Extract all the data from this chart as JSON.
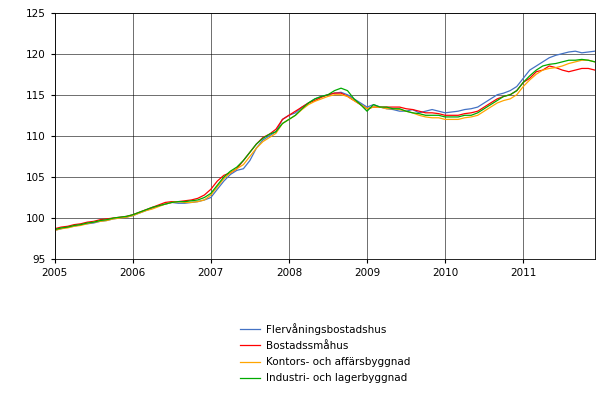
{
  "xlim": [
    2005.0,
    2011.917
  ],
  "ylim": [
    95,
    125
  ],
  "yticks": [
    95,
    100,
    105,
    110,
    115,
    120,
    125
  ],
  "xticks": [
    2005,
    2006,
    2007,
    2008,
    2009,
    2010,
    2011
  ],
  "legend_labels": [
    "Flervåningsbostadshus",
    "Bostadssmåhus",
    "Kontors- och affärsbyggnad",
    "Industri- och lagerbyggnad"
  ],
  "line_colors": [
    "#4472c4",
    "#ff0000",
    "#ffa500",
    "#00aa00"
  ],
  "background_color": "#ffffff",
  "grid_color": "#000000",
  "series": {
    "flervaning": [
      [
        2005.0,
        98.5
      ],
      [
        2005.083,
        98.7
      ],
      [
        2005.167,
        98.9
      ],
      [
        2005.25,
        99.0
      ],
      [
        2005.333,
        99.2
      ],
      [
        2005.417,
        99.3
      ],
      [
        2005.5,
        99.4
      ],
      [
        2005.583,
        99.6
      ],
      [
        2005.667,
        99.7
      ],
      [
        2005.75,
        99.9
      ],
      [
        2005.833,
        100.0
      ],
      [
        2005.917,
        100.1
      ],
      [
        2006.0,
        100.3
      ],
      [
        2006.083,
        100.6
      ],
      [
        2006.167,
        100.9
      ],
      [
        2006.25,
        101.2
      ],
      [
        2006.333,
        101.5
      ],
      [
        2006.417,
        101.7
      ],
      [
        2006.5,
        101.9
      ],
      [
        2006.583,
        101.8
      ],
      [
        2006.667,
        101.8
      ],
      [
        2006.75,
        101.9
      ],
      [
        2006.833,
        102.0
      ],
      [
        2006.917,
        102.2
      ],
      [
        2007.0,
        102.5
      ],
      [
        2007.083,
        103.5
      ],
      [
        2007.167,
        104.5
      ],
      [
        2007.25,
        105.3
      ],
      [
        2007.333,
        105.8
      ],
      [
        2007.417,
        106.0
      ],
      [
        2007.5,
        107.0
      ],
      [
        2007.583,
        108.5
      ],
      [
        2007.667,
        109.5
      ],
      [
        2007.75,
        110.0
      ],
      [
        2007.833,
        110.5
      ],
      [
        2007.917,
        112.0
      ],
      [
        2008.0,
        112.5
      ],
      [
        2008.083,
        112.8
      ],
      [
        2008.167,
        113.5
      ],
      [
        2008.25,
        114.0
      ],
      [
        2008.333,
        114.5
      ],
      [
        2008.417,
        114.8
      ],
      [
        2008.5,
        115.0
      ],
      [
        2008.583,
        115.2
      ],
      [
        2008.667,
        115.3
      ],
      [
        2008.75,
        115.0
      ],
      [
        2008.833,
        114.5
      ],
      [
        2008.917,
        114.0
      ],
      [
        2009.0,
        113.5
      ],
      [
        2009.083,
        113.8
      ],
      [
        2009.167,
        113.5
      ],
      [
        2009.25,
        113.3
      ],
      [
        2009.333,
        113.2
      ],
      [
        2009.417,
        113.0
      ],
      [
        2009.5,
        113.0
      ],
      [
        2009.583,
        113.2
      ],
      [
        2009.667,
        112.8
      ],
      [
        2009.75,
        113.0
      ],
      [
        2009.833,
        113.2
      ],
      [
        2009.917,
        113.0
      ],
      [
        2010.0,
        112.8
      ],
      [
        2010.083,
        112.9
      ],
      [
        2010.167,
        113.0
      ],
      [
        2010.25,
        113.2
      ],
      [
        2010.333,
        113.3
      ],
      [
        2010.417,
        113.5
      ],
      [
        2010.5,
        114.0
      ],
      [
        2010.583,
        114.5
      ],
      [
        2010.667,
        115.0
      ],
      [
        2010.75,
        115.2
      ],
      [
        2010.833,
        115.5
      ],
      [
        2010.917,
        116.0
      ],
      [
        2011.0,
        117.0
      ],
      [
        2011.083,
        118.0
      ],
      [
        2011.167,
        118.5
      ],
      [
        2011.25,
        119.0
      ],
      [
        2011.333,
        119.5
      ],
      [
        2011.417,
        119.8
      ],
      [
        2011.5,
        120.0
      ],
      [
        2011.583,
        120.2
      ],
      [
        2011.667,
        120.3
      ],
      [
        2011.75,
        120.1
      ],
      [
        2011.833,
        120.2
      ],
      [
        2011.917,
        120.3
      ]
    ],
    "bostadsmahus": [
      [
        2005.0,
        98.7
      ],
      [
        2005.083,
        98.9
      ],
      [
        2005.167,
        99.0
      ],
      [
        2005.25,
        99.2
      ],
      [
        2005.333,
        99.3
      ],
      [
        2005.417,
        99.5
      ],
      [
        2005.5,
        99.6
      ],
      [
        2005.583,
        99.8
      ],
      [
        2005.667,
        99.9
      ],
      [
        2005.75,
        100.0
      ],
      [
        2005.833,
        100.1
      ],
      [
        2005.917,
        100.2
      ],
      [
        2006.0,
        100.4
      ],
      [
        2006.083,
        100.7
      ],
      [
        2006.167,
        101.0
      ],
      [
        2006.25,
        101.3
      ],
      [
        2006.333,
        101.6
      ],
      [
        2006.417,
        101.9
      ],
      [
        2006.5,
        102.0
      ],
      [
        2006.583,
        102.0
      ],
      [
        2006.667,
        102.1
      ],
      [
        2006.75,
        102.2
      ],
      [
        2006.833,
        102.4
      ],
      [
        2006.917,
        102.8
      ],
      [
        2007.0,
        103.5
      ],
      [
        2007.083,
        104.5
      ],
      [
        2007.167,
        105.2
      ],
      [
        2007.25,
        105.5
      ],
      [
        2007.333,
        106.0
      ],
      [
        2007.417,
        107.0
      ],
      [
        2007.5,
        108.0
      ],
      [
        2007.583,
        109.0
      ],
      [
        2007.667,
        109.8
      ],
      [
        2007.75,
        110.2
      ],
      [
        2007.833,
        110.8
      ],
      [
        2007.917,
        112.0
      ],
      [
        2008.0,
        112.5
      ],
      [
        2008.083,
        113.0
      ],
      [
        2008.167,
        113.5
      ],
      [
        2008.25,
        114.0
      ],
      [
        2008.333,
        114.3
      ],
      [
        2008.417,
        114.7
      ],
      [
        2008.5,
        115.0
      ],
      [
        2008.583,
        115.2
      ],
      [
        2008.667,
        115.2
      ],
      [
        2008.75,
        114.8
      ],
      [
        2008.833,
        114.3
      ],
      [
        2008.917,
        113.8
      ],
      [
        2009.0,
        113.3
      ],
      [
        2009.083,
        113.5
      ],
      [
        2009.167,
        113.5
      ],
      [
        2009.25,
        113.5
      ],
      [
        2009.333,
        113.5
      ],
      [
        2009.417,
        113.5
      ],
      [
        2009.5,
        113.3
      ],
      [
        2009.583,
        113.2
      ],
      [
        2009.667,
        113.0
      ],
      [
        2009.75,
        112.8
      ],
      [
        2009.833,
        112.8
      ],
      [
        2009.917,
        112.7
      ],
      [
        2010.0,
        112.5
      ],
      [
        2010.083,
        112.5
      ],
      [
        2010.167,
        112.5
      ],
      [
        2010.25,
        112.7
      ],
      [
        2010.333,
        112.8
      ],
      [
        2010.417,
        113.0
      ],
      [
        2010.5,
        113.5
      ],
      [
        2010.583,
        114.0
      ],
      [
        2010.667,
        114.5
      ],
      [
        2010.75,
        114.8
      ],
      [
        2010.833,
        115.0
      ],
      [
        2010.917,
        115.5
      ],
      [
        2011.0,
        116.5
      ],
      [
        2011.083,
        117.0
      ],
      [
        2011.167,
        117.8
      ],
      [
        2011.25,
        118.0
      ],
      [
        2011.333,
        118.5
      ],
      [
        2011.417,
        118.3
      ],
      [
        2011.5,
        118.0
      ],
      [
        2011.583,
        117.8
      ],
      [
        2011.667,
        118.0
      ],
      [
        2011.75,
        118.2
      ],
      [
        2011.833,
        118.2
      ],
      [
        2011.917,
        118.0
      ]
    ],
    "kontors": [
      [
        2005.0,
        98.5
      ],
      [
        2005.083,
        98.7
      ],
      [
        2005.167,
        98.8
      ],
      [
        2005.25,
        99.0
      ],
      [
        2005.333,
        99.1
      ],
      [
        2005.417,
        99.3
      ],
      [
        2005.5,
        99.5
      ],
      [
        2005.583,
        99.6
      ],
      [
        2005.667,
        99.7
      ],
      [
        2005.75,
        99.9
      ],
      [
        2005.833,
        100.0
      ],
      [
        2005.917,
        100.1
      ],
      [
        2006.0,
        100.3
      ],
      [
        2006.083,
        100.6
      ],
      [
        2006.167,
        100.9
      ],
      [
        2006.25,
        101.1
      ],
      [
        2006.333,
        101.4
      ],
      [
        2006.417,
        101.7
      ],
      [
        2006.5,
        101.9
      ],
      [
        2006.583,
        102.0
      ],
      [
        2006.667,
        101.9
      ],
      [
        2006.75,
        101.9
      ],
      [
        2006.833,
        102.0
      ],
      [
        2006.917,
        102.2
      ],
      [
        2007.0,
        102.8
      ],
      [
        2007.083,
        103.8
      ],
      [
        2007.167,
        104.8
      ],
      [
        2007.25,
        105.5
      ],
      [
        2007.333,
        106.0
      ],
      [
        2007.417,
        106.5
      ],
      [
        2007.5,
        107.5
      ],
      [
        2007.583,
        108.5
      ],
      [
        2007.667,
        109.3
      ],
      [
        2007.75,
        109.8
      ],
      [
        2007.833,
        110.3
      ],
      [
        2007.917,
        111.5
      ],
      [
        2008.0,
        112.0
      ],
      [
        2008.083,
        112.5
      ],
      [
        2008.167,
        113.2
      ],
      [
        2008.25,
        113.8
      ],
      [
        2008.333,
        114.2
      ],
      [
        2008.417,
        114.5
      ],
      [
        2008.5,
        114.8
      ],
      [
        2008.583,
        115.0
      ],
      [
        2008.667,
        115.0
      ],
      [
        2008.75,
        114.8
      ],
      [
        2008.833,
        114.3
      ],
      [
        2008.917,
        113.8
      ],
      [
        2009.0,
        113.3
      ],
      [
        2009.083,
        113.5
      ],
      [
        2009.167,
        113.5
      ],
      [
        2009.25,
        113.3
      ],
      [
        2009.333,
        113.3
      ],
      [
        2009.417,
        113.2
      ],
      [
        2009.5,
        113.0
      ],
      [
        2009.583,
        112.8
      ],
      [
        2009.667,
        112.5
      ],
      [
        2009.75,
        112.3
      ],
      [
        2009.833,
        112.2
      ],
      [
        2009.917,
        112.2
      ],
      [
        2010.0,
        112.0
      ],
      [
        2010.083,
        112.0
      ],
      [
        2010.167,
        112.0
      ],
      [
        2010.25,
        112.2
      ],
      [
        2010.333,
        112.3
      ],
      [
        2010.417,
        112.5
      ],
      [
        2010.5,
        113.0
      ],
      [
        2010.583,
        113.5
      ],
      [
        2010.667,
        114.0
      ],
      [
        2010.75,
        114.3
      ],
      [
        2010.833,
        114.5
      ],
      [
        2010.917,
        115.0
      ],
      [
        2011.0,
        116.0
      ],
      [
        2011.083,
        116.8
      ],
      [
        2011.167,
        117.5
      ],
      [
        2011.25,
        118.0
      ],
      [
        2011.333,
        118.2
      ],
      [
        2011.417,
        118.3
      ],
      [
        2011.5,
        118.5
      ],
      [
        2011.583,
        118.8
      ],
      [
        2011.667,
        119.0
      ],
      [
        2011.75,
        119.2
      ],
      [
        2011.833,
        119.2
      ],
      [
        2011.917,
        119.0
      ]
    ],
    "industri": [
      [
        2005.0,
        98.6
      ],
      [
        2005.083,
        98.8
      ],
      [
        2005.167,
        98.9
      ],
      [
        2005.25,
        99.1
      ],
      [
        2005.333,
        99.2
      ],
      [
        2005.417,
        99.4
      ],
      [
        2005.5,
        99.5
      ],
      [
        2005.583,
        99.7
      ],
      [
        2005.667,
        99.8
      ],
      [
        2005.75,
        100.0
      ],
      [
        2005.833,
        100.1
      ],
      [
        2005.917,
        100.2
      ],
      [
        2006.0,
        100.4
      ],
      [
        2006.083,
        100.7
      ],
      [
        2006.167,
        101.0
      ],
      [
        2006.25,
        101.3
      ],
      [
        2006.333,
        101.5
      ],
      [
        2006.417,
        101.7
      ],
      [
        2006.5,
        101.9
      ],
      [
        2006.583,
        102.0
      ],
      [
        2006.667,
        102.0
      ],
      [
        2006.75,
        102.1
      ],
      [
        2006.833,
        102.2
      ],
      [
        2006.917,
        102.5
      ],
      [
        2007.0,
        103.0
      ],
      [
        2007.083,
        104.0
      ],
      [
        2007.167,
        105.0
      ],
      [
        2007.25,
        105.7
      ],
      [
        2007.333,
        106.2
      ],
      [
        2007.417,
        107.0
      ],
      [
        2007.5,
        108.0
      ],
      [
        2007.583,
        109.0
      ],
      [
        2007.667,
        109.7
      ],
      [
        2007.75,
        110.2
      ],
      [
        2007.833,
        110.5
      ],
      [
        2007.917,
        111.5
      ],
      [
        2008.0,
        112.0
      ],
      [
        2008.083,
        112.5
      ],
      [
        2008.167,
        113.3
      ],
      [
        2008.25,
        114.0
      ],
      [
        2008.333,
        114.5
      ],
      [
        2008.417,
        114.8
      ],
      [
        2008.5,
        115.0
      ],
      [
        2008.583,
        115.5
      ],
      [
        2008.667,
        115.8
      ],
      [
        2008.75,
        115.5
      ],
      [
        2008.833,
        114.5
      ],
      [
        2008.917,
        113.8
      ],
      [
        2009.0,
        113.0
      ],
      [
        2009.083,
        113.8
      ],
      [
        2009.167,
        113.5
      ],
      [
        2009.25,
        113.5
      ],
      [
        2009.333,
        113.3
      ],
      [
        2009.417,
        113.3
      ],
      [
        2009.5,
        113.0
      ],
      [
        2009.583,
        112.8
      ],
      [
        2009.667,
        112.7
      ],
      [
        2009.75,
        112.5
      ],
      [
        2009.833,
        112.5
      ],
      [
        2009.917,
        112.5
      ],
      [
        2010.0,
        112.3
      ],
      [
        2010.083,
        112.3
      ],
      [
        2010.167,
        112.3
      ],
      [
        2010.25,
        112.5
      ],
      [
        2010.333,
        112.5
      ],
      [
        2010.417,
        112.8
      ],
      [
        2010.5,
        113.3
      ],
      [
        2010.583,
        113.8
      ],
      [
        2010.667,
        114.3
      ],
      [
        2010.75,
        114.8
      ],
      [
        2010.833,
        115.0
      ],
      [
        2010.917,
        115.5
      ],
      [
        2011.0,
        116.5
      ],
      [
        2011.083,
        117.3
      ],
      [
        2011.167,
        118.0
      ],
      [
        2011.25,
        118.5
      ],
      [
        2011.333,
        118.7
      ],
      [
        2011.417,
        118.8
      ],
      [
        2011.5,
        119.0
      ],
      [
        2011.583,
        119.2
      ],
      [
        2011.667,
        119.2
      ],
      [
        2011.75,
        119.3
      ],
      [
        2011.833,
        119.2
      ],
      [
        2011.917,
        119.0
      ]
    ]
  }
}
